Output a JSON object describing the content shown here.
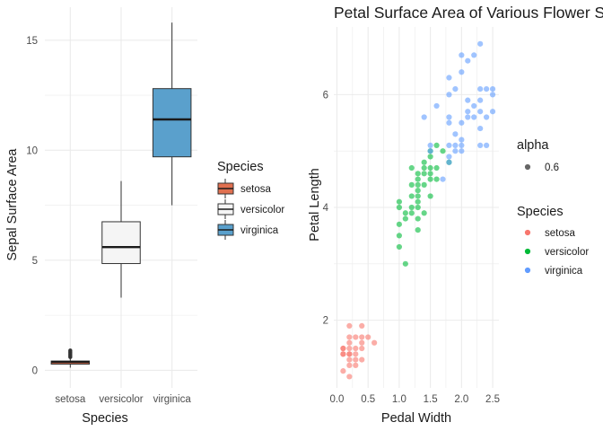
{
  "chart_data": [
    {
      "type": "box",
      "title": "",
      "xlabel": "Species",
      "ylabel": "Sepal Surface Area",
      "ylim": [
        -0.8,
        16.5
      ],
      "yticks": [
        0,
        5,
        10,
        15
      ],
      "grid": true,
      "categories": [
        "setosa",
        "versicolor",
        "virginica"
      ],
      "boxes": [
        {
          "name": "setosa",
          "min": 0.12,
          "q1": 0.28,
          "median": 0.38,
          "q3": 0.42,
          "max": 0.55,
          "outliers": [
            0.6,
            0.65,
            0.7,
            0.75,
            0.8,
            0.85,
            0.9
          ],
          "color": "#E07050"
        },
        {
          "name": "versicolor",
          "min": 3.3,
          "q1": 4.85,
          "median": 5.6,
          "q3": 6.75,
          "max": 8.6,
          "outliers": [],
          "color": "#F5F5F5"
        },
        {
          "name": "virginica",
          "min": 7.5,
          "q1": 9.7,
          "median": 11.4,
          "q3": 12.8,
          "max": 15.8,
          "outliers": [],
          "color": "#5AA0CC"
        }
      ],
      "legend": {
        "title": "Species",
        "position": "right",
        "items": [
          "setosa",
          "versicolor",
          "virginica"
        ]
      }
    },
    {
      "type": "scatter",
      "title": "Petal Surface Area of Various Flower S",
      "xlabel": "Pedal Width",
      "ylabel": "Petal Length",
      "xlim": [
        -0.05,
        2.6
      ],
      "ylim": [
        0.8,
        7.2
      ],
      "xticks": [
        0.0,
        0.5,
        1.0,
        1.5,
        2.0,
        2.5
      ],
      "xtick_labels": [
        "0.0",
        "0.5",
        "1.0",
        "1.5",
        "2.0",
        "2.5"
      ],
      "yticks": [
        2,
        4,
        6
      ],
      "grid": true,
      "alpha": 0.6,
      "series": [
        {
          "name": "setosa",
          "color": "#F8766D",
          "points": [
            [
              0.1,
              1.1
            ],
            [
              0.1,
              1.4
            ],
            [
              0.1,
              1.5
            ],
            [
              0.1,
              1.4
            ],
            [
              0.1,
              1.5
            ],
            [
              0.2,
              1.4
            ],
            [
              0.2,
              1.3
            ],
            [
              0.2,
              1.5
            ],
            [
              0.2,
              1.4
            ],
            [
              0.2,
              1.7
            ],
            [
              0.2,
              1.6
            ],
            [
              0.2,
              1.9
            ],
            [
              0.2,
              1.2
            ],
            [
              0.2,
              1.0
            ],
            [
              0.3,
              1.4
            ],
            [
              0.3,
              1.3
            ],
            [
              0.3,
              1.7
            ],
            [
              0.3,
              1.5
            ],
            [
              0.3,
              1.2
            ],
            [
              0.4,
              1.5
            ],
            [
              0.4,
              1.7
            ],
            [
              0.4,
              1.9
            ],
            [
              0.4,
              1.3
            ],
            [
              0.4,
              1.6
            ],
            [
              0.5,
              1.7
            ],
            [
              0.6,
              1.6
            ]
          ]
        },
        {
          "name": "versicolor",
          "color": "#00BA38",
          "points": [
            [
              1.0,
              3.3
            ],
            [
              1.0,
              3.5
            ],
            [
              1.0,
              4.0
            ],
            [
              1.0,
              3.7
            ],
            [
              1.0,
              4.1
            ],
            [
              1.1,
              3.0
            ],
            [
              1.1,
              3.8
            ],
            [
              1.1,
              3.9
            ],
            [
              1.2,
              4.0
            ],
            [
              1.2,
              4.4
            ],
            [
              1.2,
              4.2
            ],
            [
              1.2,
              3.9
            ],
            [
              1.2,
              4.7
            ],
            [
              1.3,
              4.0
            ],
            [
              1.3,
              4.1
            ],
            [
              1.3,
              4.4
            ],
            [
              1.3,
              3.6
            ],
            [
              1.3,
              4.2
            ],
            [
              1.3,
              4.3
            ],
            [
              1.3,
              4.5
            ],
            [
              1.3,
              4.6
            ],
            [
              1.3,
              3.8
            ],
            [
              1.4,
              4.4
            ],
            [
              1.4,
              4.6
            ],
            [
              1.4,
              4.7
            ],
            [
              1.4,
              4.8
            ],
            [
              1.4,
              3.9
            ],
            [
              1.5,
              4.5
            ],
            [
              1.5,
              4.6
            ],
            [
              1.5,
              4.7
            ],
            [
              1.5,
              4.9
            ],
            [
              1.5,
              5.0
            ],
            [
              1.5,
              4.2
            ],
            [
              1.6,
              4.5
            ],
            [
              1.6,
              4.7
            ],
            [
              1.6,
              5.1
            ],
            [
              1.7,
              5.0
            ],
            [
              1.8,
              4.8
            ]
          ]
        },
        {
          "name": "virginica",
          "color": "#619CFF",
          "points": [
            [
              1.4,
              5.6
            ],
            [
              1.5,
              5.0
            ],
            [
              1.5,
              5.1
            ],
            [
              1.6,
              5.8
            ],
            [
              1.7,
              4.5
            ],
            [
              1.8,
              4.8
            ],
            [
              1.8,
              4.9
            ],
            [
              1.8,
              5.1
            ],
            [
              1.8,
              5.5
            ],
            [
              1.8,
              5.6
            ],
            [
              1.8,
              6.0
            ],
            [
              1.8,
              6.3
            ],
            [
              1.9,
              5.0
            ],
            [
              1.9,
              5.1
            ],
            [
              1.9,
              5.3
            ],
            [
              1.9,
              6.1
            ],
            [
              2.0,
              5.0
            ],
            [
              2.0,
              5.1
            ],
            [
              2.0,
              5.2
            ],
            [
              2.0,
              5.5
            ],
            [
              2.0,
              6.4
            ],
            [
              2.0,
              6.7
            ],
            [
              2.1,
              5.6
            ],
            [
              2.1,
              5.7
            ],
            [
              2.1,
              5.9
            ],
            [
              2.1,
              6.6
            ],
            [
              2.2,
              5.6
            ],
            [
              2.2,
              5.8
            ],
            [
              2.2,
              6.7
            ],
            [
              2.3,
              5.1
            ],
            [
              2.3,
              5.4
            ],
            [
              2.3,
              5.7
            ],
            [
              2.3,
              5.9
            ],
            [
              2.3,
              6.1
            ],
            [
              2.3,
              6.9
            ],
            [
              2.4,
              5.1
            ],
            [
              2.4,
              5.6
            ],
            [
              2.4,
              6.1
            ],
            [
              2.5,
              5.7
            ],
            [
              2.5,
              6.0
            ],
            [
              2.5,
              6.1
            ]
          ]
        }
      ],
      "legends": [
        {
          "title": "alpha",
          "position": "right",
          "items": [
            "0.6"
          ]
        },
        {
          "title": "Species",
          "position": "right",
          "items": [
            "setosa",
            "versicolor",
            "virginica"
          ]
        }
      ]
    }
  ]
}
